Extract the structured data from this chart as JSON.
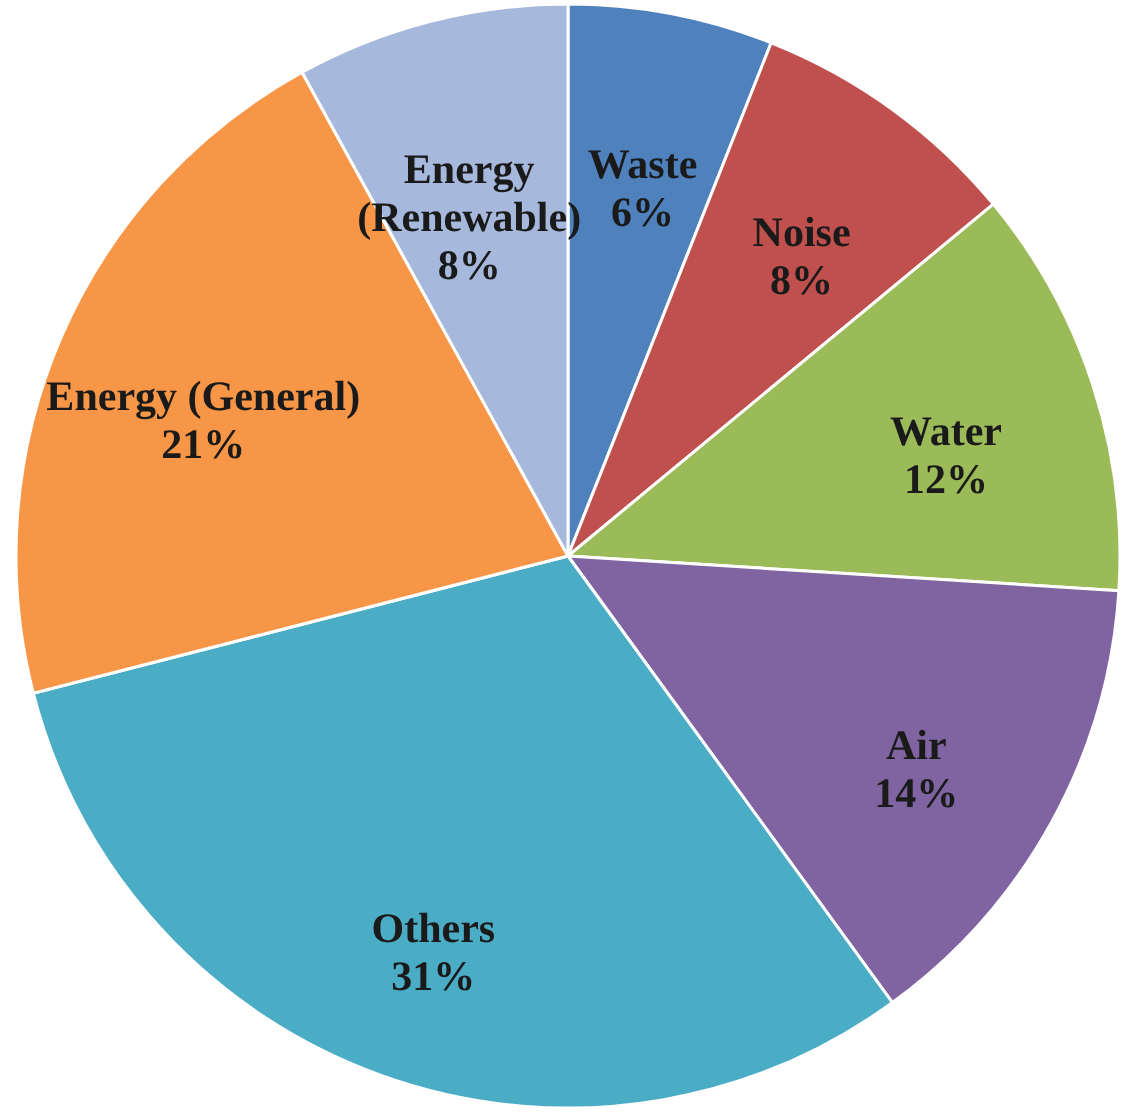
{
  "chart_data": {
    "type": "pie",
    "categories": [
      "Waste",
      "Noise",
      "Water",
      "Air",
      "Others",
      "Energy (General)",
      "Energy (Renewable)"
    ],
    "values": [
      6,
      8,
      12,
      14,
      31,
      21,
      8
    ],
    "value_labels": [
      "6%",
      "8%",
      "12%",
      "14%",
      "31%",
      "21%",
      "8%"
    ],
    "colors": [
      "#4f81bd",
      "#c0504d",
      "#9bbb59",
      "#8064a2",
      "#4bacc6",
      "#f79646",
      "#a6b9dc"
    ]
  }
}
